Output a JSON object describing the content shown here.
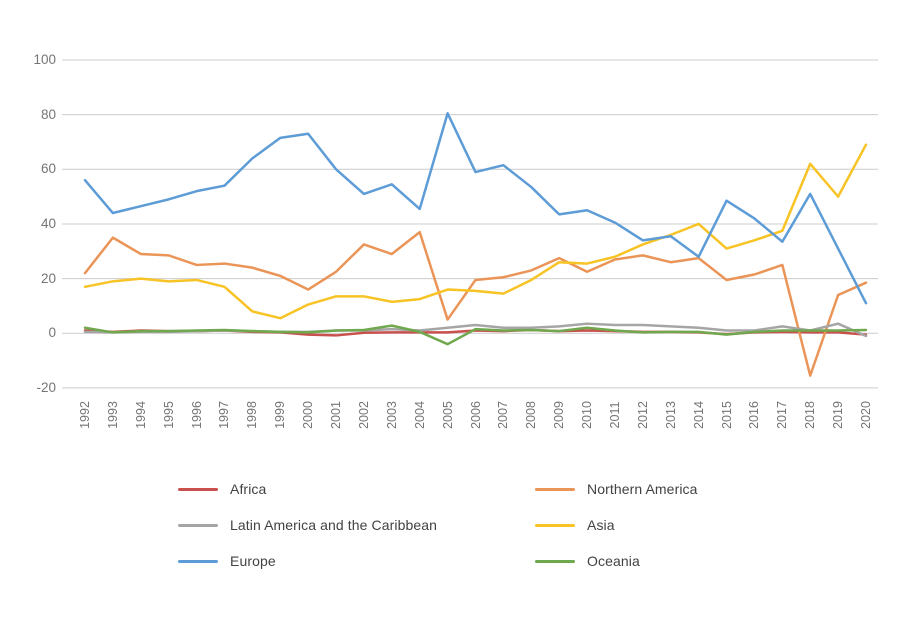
{
  "chart_data": {
    "type": "line",
    "title": "",
    "xlabel": "",
    "ylabel": "",
    "x": [
      1992,
      1993,
      1994,
      1995,
      1996,
      1997,
      1998,
      1999,
      2000,
      2001,
      2002,
      2003,
      2004,
      2005,
      2006,
      2007,
      2008,
      2009,
      2010,
      2011,
      2012,
      2013,
      2014,
      2015,
      2016,
      2017,
      2018,
      2019,
      2020
    ],
    "yticks": [
      100,
      80,
      60,
      40,
      20,
      0,
      -20
    ],
    "ylim": [
      -20,
      100
    ],
    "grid": "horizontal",
    "legend_position": "bottom",
    "axis_label_color": "#757575",
    "gridline_color": "#cccccc",
    "series": [
      {
        "name": "Africa",
        "color": "#C9514D",
        "values": [
          1,
          0.5,
          1,
          0.8,
          0.8,
          1,
          0.5,
          0.3,
          -0.5,
          -0.8,
          0.2,
          0.3,
          0.3,
          0.3,
          1,
          0.8,
          1.2,
          0.8,
          1,
          0.8,
          0.5,
          0.5,
          0.3,
          -0.3,
          0.3,
          0.5,
          0.3,
          0.3,
          -0.5
        ]
      },
      {
        "name": "Northern America",
        "color": "#EB9457",
        "values": [
          22,
          35,
          29,
          28.5,
          25,
          25.5,
          24,
          21,
          16,
          22.5,
          32.5,
          29,
          37,
          5,
          19.5,
          20.5,
          23,
          27.5,
          22.5,
          27,
          28.5,
          26,
          27.5,
          19.5,
          21.5,
          25,
          -15.5,
          14,
          18.5
        ]
      },
      {
        "name": "Latin America and the Caribbean",
        "color": "#A5A5A5",
        "values": [
          0.5,
          0.3,
          0.5,
          0.5,
          0.8,
          1,
          0.8,
          0.5,
          0.5,
          1,
          1,
          1.5,
          1,
          2,
          3,
          2,
          2,
          2.5,
          3.5,
          3,
          3,
          2.5,
          2,
          1,
          1,
          2.5,
          1,
          3.5,
          -1
        ]
      },
      {
        "name": "Asia",
        "color": "#F7C325",
        "values": [
          17,
          19,
          20,
          19,
          19.5,
          17,
          8,
          5.5,
          10.5,
          13.5,
          13.5,
          11.5,
          12.5,
          16,
          15.5,
          14.5,
          19.5,
          26,
          25.5,
          28,
          32.5,
          36,
          40,
          31,
          34,
          37.5,
          62,
          50,
          69
        ]
      },
      {
        "name": "Europe",
        "color": "#5D9CD6",
        "values": [
          56,
          44,
          46.5,
          49,
          52,
          54,
          64,
          71.5,
          73,
          60,
          51,
          54.5,
          45.5,
          80.5,
          59,
          61.5,
          53.5,
          43.5,
          45,
          40.5,
          34,
          35.5,
          28,
          48.5,
          42,
          33.5,
          51,
          31,
          11
        ]
      },
      {
        "name": "Oceania",
        "color": "#70A84E",
        "values": [
          2,
          0.3,
          0.8,
          0.8,
          1,
          1.2,
          0.8,
          0.5,
          0.3,
          1,
          1.2,
          2.8,
          0.5,
          -4,
          1.5,
          1,
          1.2,
          0.8,
          2,
          1,
          0.3,
          0.5,
          0.5,
          -0.5,
          0.5,
          1,
          1,
          1,
          1.2
        ]
      }
    ],
    "legend_order": [
      "Africa",
      "Northern America",
      "Latin America and the Caribbean",
      "Asia",
      "Europe",
      "Oceania"
    ]
  }
}
